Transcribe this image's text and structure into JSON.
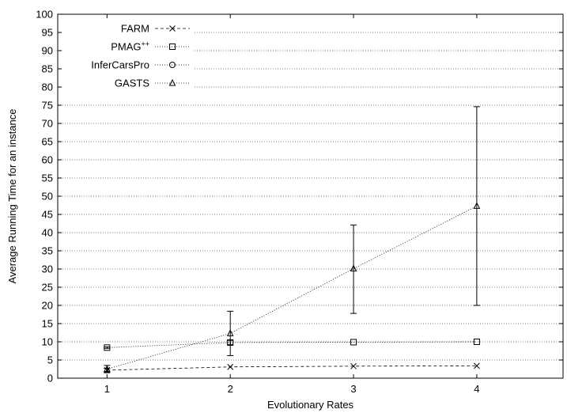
{
  "chart_data": {
    "type": "line",
    "title": "",
    "xlabel": "Evolutionary Rates",
    "ylabel": "Average Running Time for an instance",
    "xlim": [
      0.6,
      4.7
    ],
    "ylim": [
      0,
      100
    ],
    "x_ticks": [
      1,
      2,
      3,
      4
    ],
    "y_ticks": [
      0,
      5,
      10,
      15,
      20,
      25,
      30,
      35,
      40,
      45,
      50,
      55,
      60,
      65,
      70,
      75,
      80,
      85,
      90,
      95,
      100
    ],
    "grid": "horizontal dotted",
    "legend_position": "top-left",
    "series": [
      {
        "name": "FARM",
        "marker": "x",
        "line": "dashed",
        "x": [
          1,
          2,
          3,
          4
        ],
        "y": [
          2.2,
          3.1,
          3.3,
          3.4
        ],
        "err_low": [
          1.7,
          3.0,
          3.2,
          3.3
        ],
        "err_high": [
          2.7,
          3.2,
          3.4,
          3.5
        ]
      },
      {
        "name": "PMAG++",
        "name_base": "PMAG",
        "name_sup": "++",
        "marker": "square",
        "line": "dotted",
        "x": [
          1,
          2,
          3,
          4
        ],
        "y": [
          8.4,
          9.8,
          9.9,
          10.0
        ],
        "err_low": [
          8.2,
          9.2,
          9.8,
          9.9
        ],
        "err_high": [
          8.6,
          10.4,
          10.0,
          10.1
        ]
      },
      {
        "name": "InferCarsPro",
        "marker": "circle",
        "line": "dotted",
        "x": [],
        "y": []
      },
      {
        "name": "GASTS",
        "marker": "triangle",
        "line": "dotted",
        "x": [
          1,
          2,
          3,
          4
        ],
        "y": [
          2.5,
          12.3,
          30.1,
          47.3
        ],
        "err_low": [
          1.5,
          6.2,
          17.8,
          20.0
        ],
        "err_high": [
          3.5,
          18.4,
          42.1,
          74.6
        ]
      }
    ]
  }
}
